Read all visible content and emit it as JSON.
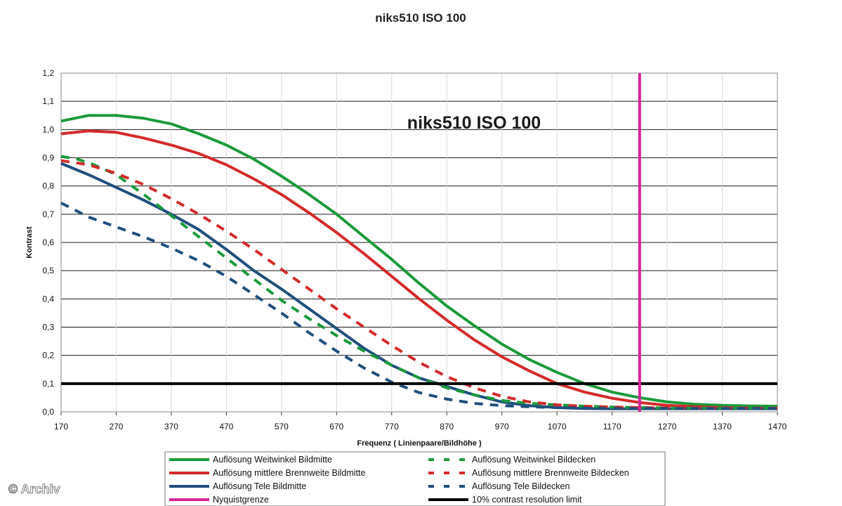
{
  "chart_data": {
    "type": "line",
    "title": "niks510 ISO 100",
    "inner_title": "niks510 ISO 100",
    "xlabel": "Frequenz ( Linienpaare/Bildhöhe )",
    "ylabel": "Kontrast",
    "xlim": [
      170,
      1470
    ],
    "ylim": [
      0,
      1.2
    ],
    "x_ticks": [
      "170",
      "270",
      "370",
      "470",
      "570",
      "670",
      "770",
      "870",
      "970",
      "1070",
      "1170",
      "1270",
      "1370",
      "1470"
    ],
    "y_ticks": [
      "0,0",
      "0,1",
      "0,2",
      "0,3",
      "0,4",
      "0,5",
      "0,6",
      "0,7",
      "0,8",
      "0,9",
      "1,0",
      "1,1",
      "1,2"
    ],
    "grid": "horizontal",
    "series": [
      {
        "name": "Auflösung Weitwinkel Bildmitte",
        "color": "#1a9a3a",
        "dash": "solid",
        "x": [
          170,
          220,
          270,
          320,
          370,
          420,
          470,
          520,
          570,
          620,
          670,
          720,
          770,
          820,
          870,
          920,
          970,
          1020,
          1070,
          1120,
          1170,
          1220,
          1270,
          1320,
          1370,
          1420,
          1470
        ],
        "y": [
          1.03,
          1.05,
          1.05,
          1.04,
          1.02,
          0.985,
          0.945,
          0.895,
          0.835,
          0.77,
          0.7,
          0.62,
          0.54,
          0.455,
          0.375,
          0.305,
          0.24,
          0.185,
          0.14,
          0.1,
          0.07,
          0.05,
          0.035,
          0.027,
          0.023,
          0.021,
          0.02
        ]
      },
      {
        "name": "Auflösung mittlere Brennweite Bildmitte",
        "color": "#d42a2a",
        "dash": "solid",
        "x": [
          170,
          220,
          270,
          320,
          370,
          420,
          470,
          520,
          570,
          620,
          670,
          720,
          770,
          820,
          870,
          920,
          970,
          1020,
          1070,
          1120,
          1170,
          1220,
          1270,
          1320,
          1370,
          1420,
          1470
        ],
        "y": [
          0.985,
          0.995,
          0.99,
          0.97,
          0.945,
          0.915,
          0.875,
          0.825,
          0.77,
          0.705,
          0.635,
          0.56,
          0.48,
          0.4,
          0.325,
          0.255,
          0.195,
          0.145,
          0.1,
          0.07,
          0.048,
          0.033,
          0.023,
          0.018,
          0.015,
          0.013,
          0.012
        ]
      },
      {
        "name": "Auflösung Tele Bildmitte",
        "color": "#1f4f7d",
        "dash": "solid",
        "x": [
          170,
          220,
          270,
          320,
          370,
          420,
          470,
          520,
          570,
          620,
          670,
          720,
          770,
          820,
          870,
          920,
          970,
          1020,
          1070,
          1120,
          1170,
          1220,
          1270,
          1320,
          1370,
          1420,
          1470
        ],
        "y": [
          0.88,
          0.84,
          0.795,
          0.75,
          0.7,
          0.645,
          0.575,
          0.5,
          0.435,
          0.365,
          0.295,
          0.225,
          0.165,
          0.12,
          0.09,
          0.06,
          0.035,
          0.022,
          0.015,
          0.012,
          0.011,
          0.011,
          0.011,
          0.011,
          0.011,
          0.011,
          0.011
        ]
      },
      {
        "name": "Auflösung Weitwinkel Bildecken",
        "color": "#1a9a3a",
        "dash": "dashed",
        "x": [
          170,
          200,
          230,
          270,
          320,
          370,
          420,
          470,
          520,
          570,
          620,
          670,
          720,
          770,
          820,
          870,
          920,
          970,
          1020,
          1070,
          1120,
          1170,
          1220,
          1270,
          1320,
          1370,
          1420,
          1470
        ],
        "y": [
          0.905,
          0.895,
          0.875,
          0.84,
          0.77,
          0.695,
          0.62,
          0.545,
          0.47,
          0.395,
          0.33,
          0.27,
          0.215,
          0.165,
          0.12,
          0.085,
          0.06,
          0.04,
          0.03,
          0.025,
          0.02,
          0.017,
          0.015,
          0.014,
          0.013,
          0.013,
          0.013,
          0.013
        ]
      },
      {
        "name": "Auflösung mittlere Brennweite Bildecken",
        "color": "#d42a2a",
        "dash": "dashed",
        "x": [
          170,
          220,
          270,
          320,
          370,
          420,
          470,
          520,
          570,
          620,
          670,
          720,
          770,
          820,
          870,
          920,
          970,
          1020,
          1070,
          1120,
          1170,
          1220,
          1270,
          1320,
          1370,
          1420,
          1470
        ],
        "y": [
          0.89,
          0.875,
          0.845,
          0.805,
          0.755,
          0.7,
          0.64,
          0.575,
          0.505,
          0.435,
          0.365,
          0.3,
          0.235,
          0.175,
          0.125,
          0.085,
          0.055,
          0.035,
          0.025,
          0.02,
          0.017,
          0.015,
          0.014,
          0.013,
          0.013,
          0.013,
          0.013
        ]
      },
      {
        "name": "Auflösung Tele Bildecken",
        "color": "#1f4f7d",
        "dash": "dashed",
        "x": [
          170,
          220,
          270,
          320,
          370,
          420,
          470,
          520,
          570,
          620,
          670,
          720,
          770,
          820,
          870,
          920,
          970,
          1020,
          1070,
          1120,
          1170,
          1220,
          1270,
          1320,
          1370,
          1420,
          1470
        ],
        "y": [
          0.74,
          0.69,
          0.655,
          0.62,
          0.58,
          0.535,
          0.48,
          0.415,
          0.35,
          0.28,
          0.215,
          0.155,
          0.105,
          0.068,
          0.045,
          0.03,
          0.022,
          0.018,
          0.015,
          0.013,
          0.012,
          0.012,
          0.012,
          0.012,
          0.012,
          0.012,
          0.012
        ]
      }
    ],
    "nyquist": {
      "name": "Nyquistgrenze",
      "color": "#d6259b",
      "x": 1220
    },
    "limit": {
      "name": "10% contrast resolution limit",
      "color": "#000000",
      "y": 0.1
    }
  },
  "watermark": "© Archiv"
}
